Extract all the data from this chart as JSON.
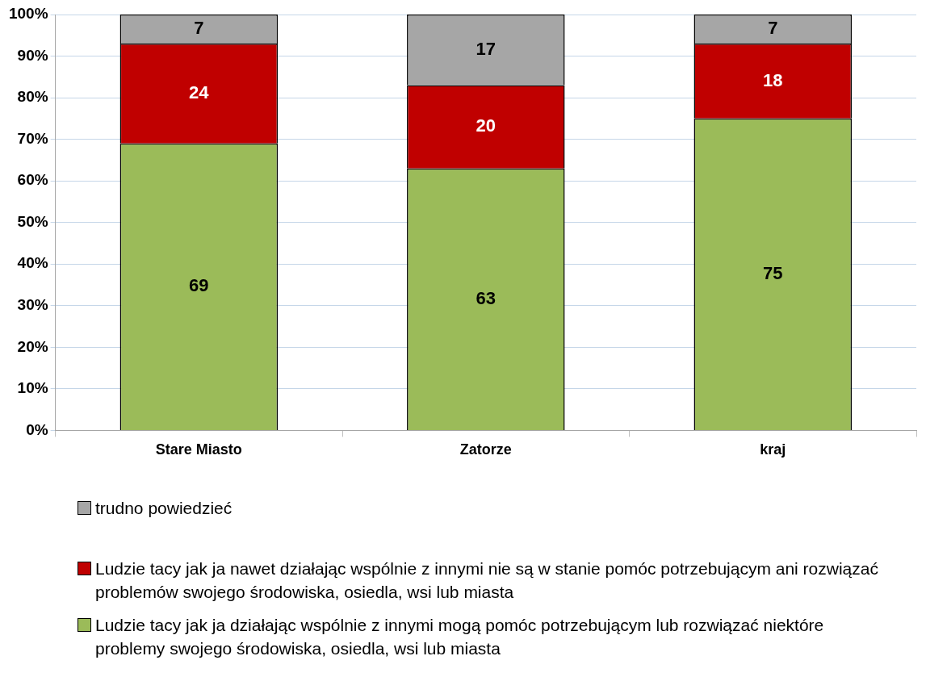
{
  "chart_data": {
    "type": "bar",
    "stacked": true,
    "categories": [
      "Stare Miasto",
      "Zatorze",
      "kraj"
    ],
    "series": [
      {
        "name": "Ludzie tacy jak ja działając wspólnie z innymi mogą pomóc potrzebującym lub rozwiązać niektóre problemy swojego środowiska, osiedla, wsi lub miasta",
        "color": "#9bbb59",
        "values": [
          69,
          63,
          75
        ]
      },
      {
        "name": "Ludzie tacy jak ja nawet działając wspólnie z innymi nie są w stanie pomóc potrzebującym ani rozwiązać problemów swojego środowiska, osiedla, wsi lub miasta",
        "color": "#c00000",
        "values": [
          24,
          20,
          18
        ]
      },
      {
        "name": "trudno powiedzieć",
        "color": "#a6a6a6",
        "values": [
          7,
          17,
          7
        ]
      }
    ],
    "ylim": [
      0,
      100
    ],
    "yticks": [
      {
        "value": 0,
        "label": "0%"
      },
      {
        "value": 10,
        "label": "10%"
      },
      {
        "value": 20,
        "label": "20%"
      },
      {
        "value": 30,
        "label": "30%"
      },
      {
        "value": 40,
        "label": "40%"
      },
      {
        "value": 50,
        "label": "50%"
      },
      {
        "value": 60,
        "label": "60%"
      },
      {
        "value": 70,
        "label": "70%"
      },
      {
        "value": 80,
        "label": "80%"
      },
      {
        "value": 90,
        "label": "90%"
      },
      {
        "value": 100,
        "label": "100%"
      }
    ],
    "grid": "y",
    "legend": "bottom",
    "data_labels": true
  }
}
